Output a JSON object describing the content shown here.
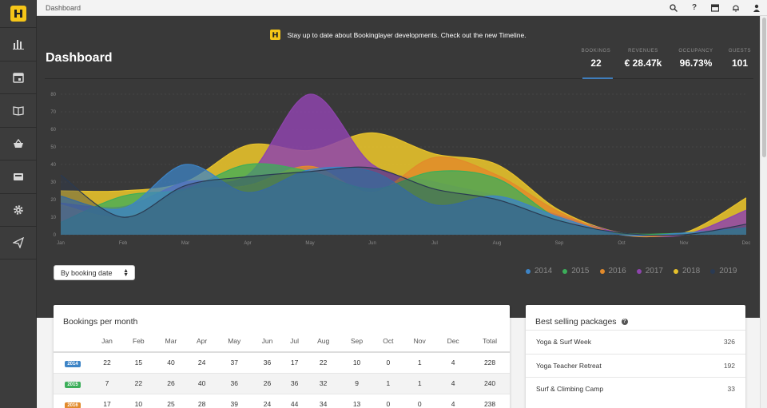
{
  "topbar": {
    "breadcrumb": "Dashboard"
  },
  "sidebar": {
    "items": [
      {
        "icon": "bar-chart-icon"
      },
      {
        "icon": "calendar-icon"
      },
      {
        "icon": "book-icon"
      },
      {
        "icon": "basket-icon"
      },
      {
        "icon": "inbox-icon"
      },
      {
        "icon": "gear-icon"
      },
      {
        "icon": "paper-plane-icon"
      }
    ]
  },
  "announcement": "Stay up to date about Bookinglayer developments. Check out the new Timeline.",
  "page_title": "Dashboard",
  "kpis": [
    {
      "label": "BOOKINGS",
      "value": "22"
    },
    {
      "label": "REVENUES",
      "value": "€ 28.47k"
    },
    {
      "label": "OCCUPANCY",
      "value": "96.73%"
    },
    {
      "label": "GUESTS",
      "value": "101"
    }
  ],
  "filter": {
    "selected": "By booking date"
  },
  "colors": {
    "2014": "#3d84c6",
    "2015": "#3cae5a",
    "2016": "#e28a2b",
    "2017": "#8e44ad",
    "2018": "#e6c12b",
    "2019": "#2a3a52"
  },
  "chart_data": {
    "type": "area",
    "categories": [
      "Jan",
      "Feb",
      "Mar",
      "Apr",
      "May",
      "Jun",
      "Jul",
      "Aug",
      "Sep",
      "Oct",
      "Nov",
      "Dec"
    ],
    "ylim": [
      0,
      80
    ],
    "yticks": [
      0,
      10,
      20,
      30,
      40,
      50,
      60,
      70,
      80
    ],
    "grid": true,
    "legend_position": "bottom-right",
    "series": [
      {
        "name": "2014",
        "values": [
          22,
          15,
          40,
          24,
          37,
          36,
          17,
          22,
          10,
          0,
          1,
          4
        ]
      },
      {
        "name": "2015",
        "values": [
          7,
          22,
          26,
          40,
          36,
          26,
          36,
          32,
          9,
          1,
          1,
          4
        ]
      },
      {
        "name": "2016",
        "values": [
          17,
          10,
          25,
          28,
          39,
          24,
          44,
          34,
          13,
          0,
          0,
          4
        ]
      },
      {
        "name": "2017",
        "values": [
          18,
          16,
          30,
          34,
          80,
          40,
          30,
          22,
          11,
          1,
          0,
          14
        ]
      },
      {
        "name": "2018",
        "values": [
          25,
          25,
          30,
          51,
          48,
          58,
          46,
          40,
          14,
          1,
          1,
          21
        ]
      },
      {
        "name": "2019",
        "values": [
          34,
          10,
          28,
          33,
          36,
          38,
          26,
          20,
          8,
          1,
          0,
          6
        ]
      }
    ]
  },
  "bookings_table": {
    "title": "Bookings per month",
    "headers": [
      "",
      "Jan",
      "Feb",
      "Mar",
      "Apr",
      "May",
      "Jun",
      "Jul",
      "Aug",
      "Sep",
      "Oct",
      "Nov",
      "Dec",
      "Total"
    ],
    "rows": [
      {
        "year": "2014",
        "cells": [
          "22",
          "15",
          "40",
          "24",
          "37",
          "36",
          "17",
          "22",
          "10",
          "0",
          "1",
          "4",
          "228"
        ]
      },
      {
        "year": "2015",
        "cells": [
          "7",
          "22",
          "26",
          "40",
          "36",
          "26",
          "36",
          "32",
          "9",
          "1",
          "1",
          "4",
          "240"
        ]
      },
      {
        "year": "2016",
        "cells": [
          "17",
          "10",
          "25",
          "28",
          "39",
          "24",
          "44",
          "34",
          "13",
          "0",
          "0",
          "4",
          "238"
        ]
      }
    ]
  },
  "packages": {
    "title": "Best selling packages",
    "items": [
      {
        "name": "Yoga & Surf Week",
        "count": "326"
      },
      {
        "name": "Yoga Teacher Retreat",
        "count": "192"
      },
      {
        "name": "Surf & Climbing Camp",
        "count": "33"
      }
    ]
  }
}
